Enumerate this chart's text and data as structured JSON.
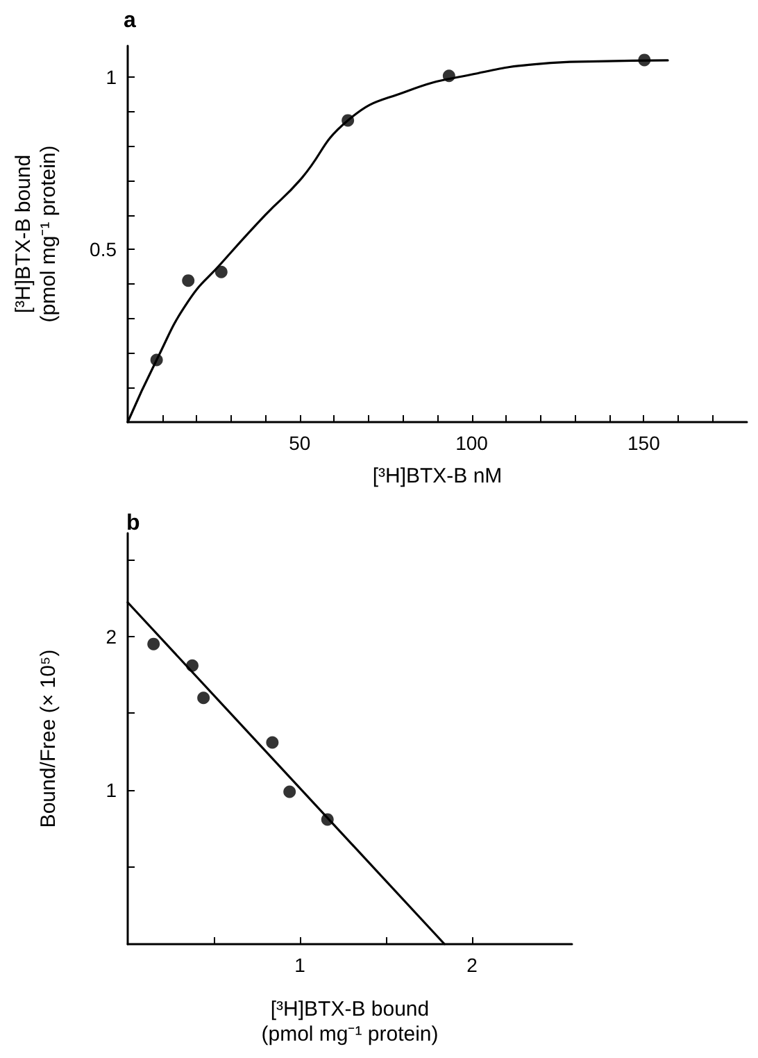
{
  "chart_data": [
    {
      "type": "scatter",
      "title": "a",
      "xlabel": "[³H]BTX-B nM",
      "ylabel": "[³H]BTX-B bound\n(pmol mg⁻¹ protein)",
      "xlim": [
        0,
        180
      ],
      "ylim": [
        0,
        1.09
      ],
      "xticks": [
        {
          "value": 10,
          "label": null
        },
        {
          "value": 20,
          "label": null
        },
        {
          "value": 30,
          "label": null
        },
        {
          "value": 40,
          "label": null
        },
        50,
        {
          "value": 60,
          "label": null
        },
        {
          "value": 70,
          "label": null
        },
        {
          "value": 80,
          "label": null
        },
        {
          "value": 90,
          "label": null
        },
        100,
        {
          "value": 110,
          "label": null
        },
        {
          "value": 120,
          "label": null
        },
        {
          "value": 130,
          "label": null
        },
        {
          "value": 140,
          "label": null
        },
        150,
        {
          "value": 160,
          "label": null
        },
        {
          "value": 170,
          "label": null
        }
      ],
      "yticks": [
        {
          "value": 0.1,
          "label": null
        },
        {
          "value": 0.2,
          "label": null
        },
        {
          "value": 0.3,
          "label": null
        },
        {
          "value": 0.4,
          "label": null
        },
        0.5,
        {
          "value": 0.6,
          "label": null
        },
        {
          "value": 0.7,
          "label": null
        },
        {
          "value": 0.8,
          "label": null
        },
        {
          "value": 0.9,
          "label": null
        },
        1
      ],
      "grid": false,
      "series": [
        {
          "type": "scatter",
          "color": "#000000",
          "marker": "circle",
          "x": [
            8.4,
            17.6,
            27.2,
            64,
            93.4,
            150.2
          ],
          "values": [
            0.18,
            0.41,
            0.435,
            0.874,
            1.003,
            1.049
          ]
        },
        {
          "type": "line",
          "color": "#000000",
          "marker": "none",
          "line_style": "solid",
          "x": [
            0,
            8.4,
            17.6,
            27.2,
            40,
            50,
            64,
            81,
            100,
            120,
            136.6,
            157
          ],
          "values": [
            0,
            0.18,
            0.35,
            0.46,
            0.6,
            0.7,
            0.874,
            0.958,
            1.007,
            1.038,
            1.045,
            1.048
          ]
        }
      ]
    },
    {
      "type": "scatter",
      "title": "b",
      "xlabel": "[³H]BTX-B bound\n(pmol mg⁻¹ protein)",
      "ylabel": "Bound/Free (× 10⁵)",
      "xlim": [
        0,
        2.58
      ],
      "ylim": [
        0,
        2.67
      ],
      "xticks": [
        {
          "value": 0.5,
          "label": null
        },
        1,
        {
          "value": 1.5,
          "label": null
        },
        2
      ],
      "yticks": [
        {
          "value": 0.5,
          "label": null
        },
        1,
        {
          "value": 1.5,
          "label": null
        },
        2,
        {
          "value": 2.5,
          "label": null
        }
      ],
      "grid": false,
      "series": [
        {
          "type": "scatter",
          "color": "#000000",
          "marker": "circle",
          "x": [
            0.15,
            0.375,
            0.44,
            0.84,
            0.94,
            1.16
          ],
          "values": [
            1.95,
            1.81,
            1.6,
            1.31,
            0.99,
            0.81
          ]
        },
        {
          "type": "line",
          "color": "#000000",
          "marker": "none",
          "line_style": "solid",
          "x": [
            0,
            1.84
          ],
          "values": [
            2.22,
            0
          ]
        }
      ]
    }
  ]
}
